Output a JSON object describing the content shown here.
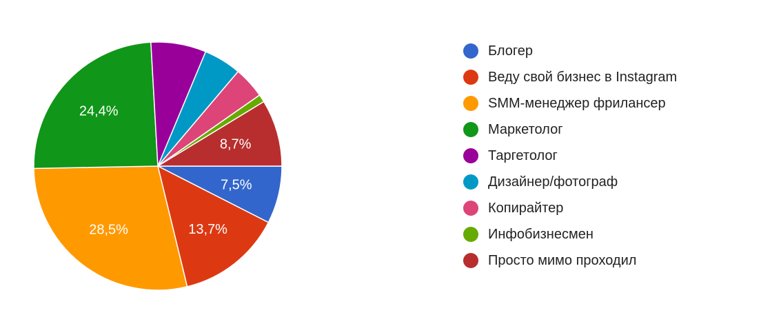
{
  "chart_data": {
    "type": "pie",
    "legend_position": "right",
    "slices": [
      {
        "name": "Блогер",
        "value": 7.5,
        "label": "7,5%",
        "color": "#3366cc"
      },
      {
        "name": "Веду свой бизнес в Instagram",
        "value": 13.7,
        "label": "13,7%",
        "color": "#dc3912"
      },
      {
        "name": "SMM-менеджер фрилансер",
        "value": 28.5,
        "label": "28,5%",
        "color": "#ff9900"
      },
      {
        "name": "Маркетолог",
        "value": 24.4,
        "label": "24,4%",
        "color": "#109618"
      },
      {
        "name": "Таргетолог",
        "value": 7.2,
        "label": "",
        "color": "#990099"
      },
      {
        "name": "Дизайнер/фотограф",
        "value": 4.9,
        "label": "",
        "color": "#0099c6"
      },
      {
        "name": "Копирайтер",
        "value": 4.1,
        "label": "",
        "color": "#dd4477"
      },
      {
        "name": "Инфобизнесмен",
        "value": 1.0,
        "label": "",
        "color": "#66aa00"
      },
      {
        "name": "Просто мимо проходил",
        "value": 8.7,
        "label": "8,7%",
        "color": "#b82e2e"
      }
    ]
  }
}
